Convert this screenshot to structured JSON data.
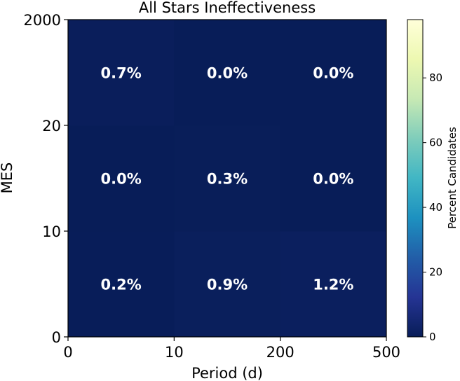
{
  "chart_data": {
    "type": "heatmap",
    "title": "All Stars Ineffectiveness",
    "xlabel": "Period (d)",
    "ylabel": "MES",
    "x_tick_labels": [
      "0",
      "10",
      "200",
      "500"
    ],
    "y_tick_labels": [
      "0",
      "10",
      "20",
      "2000"
    ],
    "x_bins": [
      "0-10",
      "10-200",
      "200-500"
    ],
    "y_bins": [
      "0-10",
      "10-20",
      "20-2000"
    ],
    "values": [
      [
        0.2,
        0.9,
        1.2
      ],
      [
        0.0,
        0.3,
        0.0
      ],
      [
        0.7,
        0.0,
        0.0
      ]
    ],
    "cell_labels": [
      [
        "0.2%",
        "0.9%",
        "1.2%"
      ],
      [
        "0.0%",
        "0.3%",
        "0.0%"
      ],
      [
        "0.7%",
        "0.0%",
        "0.0%"
      ]
    ],
    "colorbar": {
      "label": "Percent Candidates",
      "colormap": "YlGnBu_r",
      "range": [
        0,
        98
      ],
      "ticks": [
        0,
        20,
        40,
        60,
        80
      ]
    },
    "colors": {
      "low": "#081d58",
      "high": "#ffffd9",
      "cell_text": "#ffffff"
    }
  }
}
